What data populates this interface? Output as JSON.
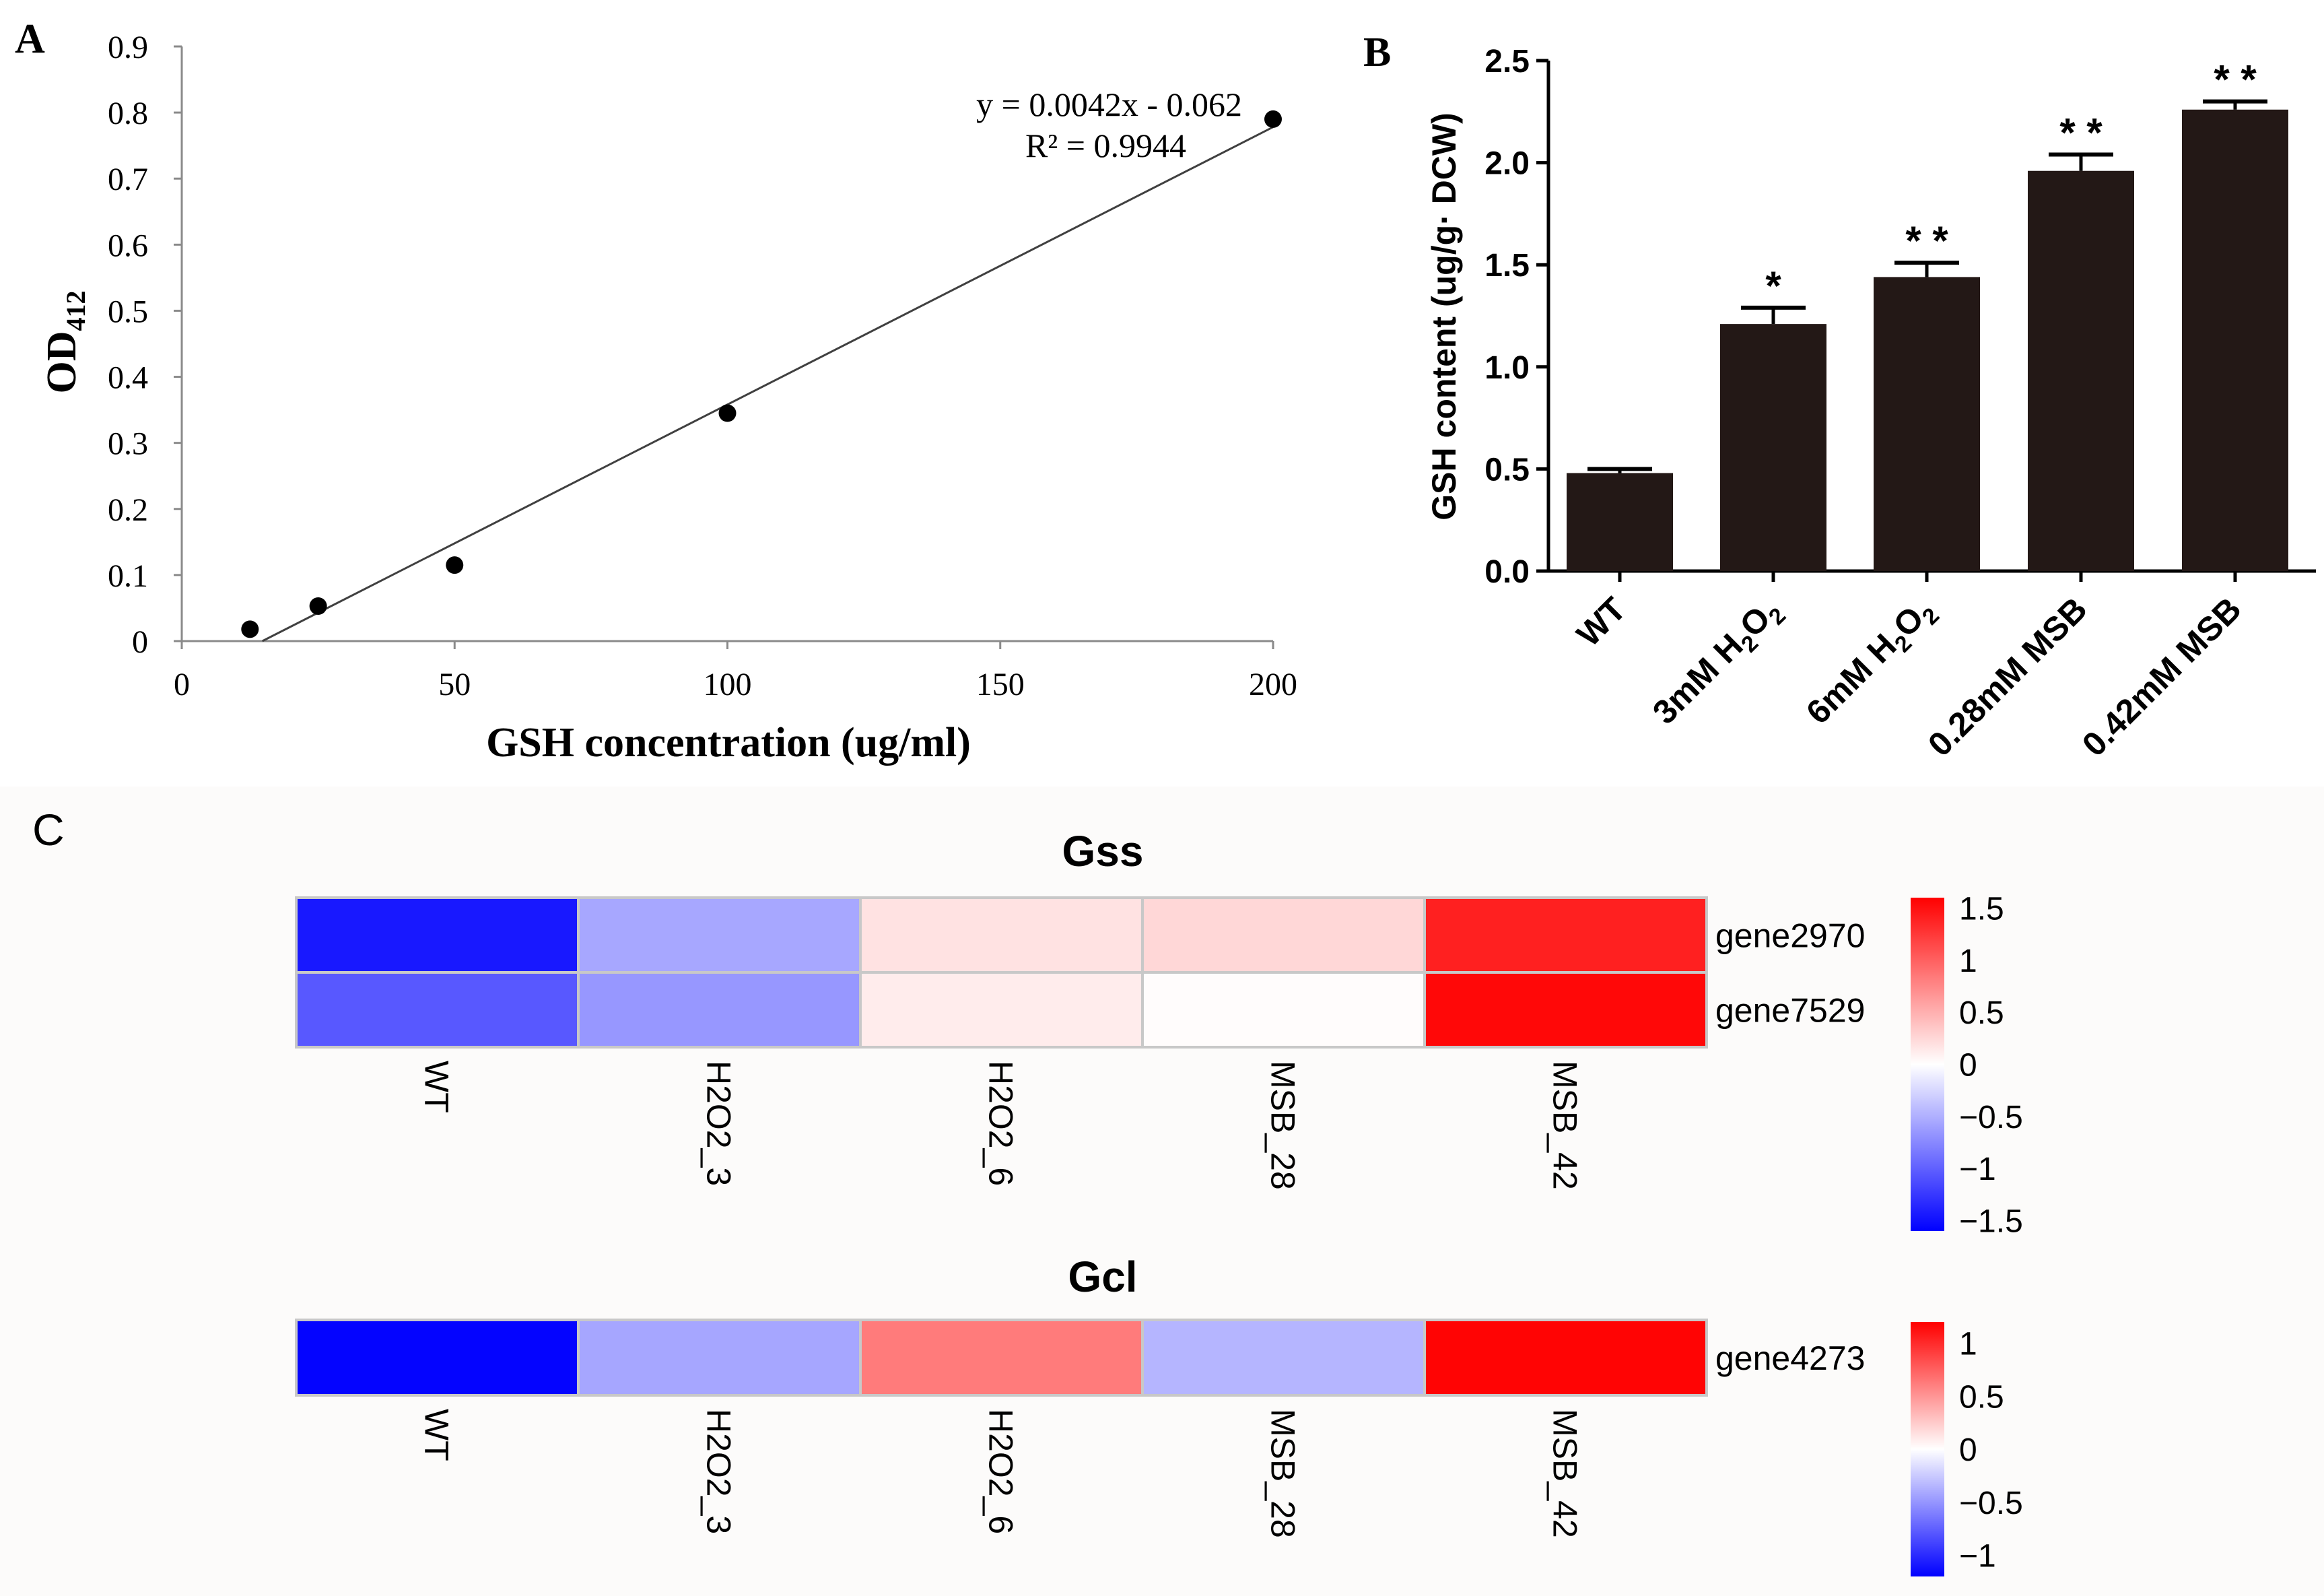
{
  "panels": {
    "a_label": "A",
    "b_label": "B",
    "c_label": "C"
  },
  "chart_data": [
    {
      "panel": "A",
      "type": "scatter",
      "xlabel": "GSH concentration (ug/ml)",
      "ylabel_main": "OD",
      "ylabel_sub": "412",
      "xlim": [
        0,
        200
      ],
      "ylim": [
        0,
        0.9
      ],
      "x_ticks": [
        0,
        50,
        100,
        150,
        200
      ],
      "y_ticks": [
        0,
        0.1,
        0.2,
        0.3,
        0.4,
        0.5,
        0.6,
        0.7,
        0.8,
        0.9
      ],
      "x_tick_labels": [
        "0",
        "50",
        "100",
        "150",
        "200"
      ],
      "y_tick_labels": [
        "0",
        "0.1",
        "0.2",
        "0.3",
        "0.4",
        "0.5",
        "0.6",
        "0.7",
        "0.8",
        "0.9"
      ],
      "points": [
        {
          "x": 12.5,
          "y": 0.018
        },
        {
          "x": 25,
          "y": 0.053
        },
        {
          "x": 50,
          "y": 0.115
        },
        {
          "x": 100,
          "y": 0.345
        },
        {
          "x": 200,
          "y": 0.79
        }
      ],
      "trendline": {
        "slope": 0.0042,
        "intercept": -0.062,
        "x_start": 14.76,
        "x_end": 200
      },
      "equation": "y = 0.0042x - 0.062",
      "r_squared": "R² = 0.9944"
    },
    {
      "panel": "B",
      "type": "bar",
      "ylabel": "GSH content (ug/g· DCW)",
      "ylim": [
        0,
        2.5
      ],
      "y_ticks": [
        0,
        0.5,
        1.0,
        1.5,
        2.0,
        2.5
      ],
      "y_tick_labels": [
        "0.0",
        "0.5",
        "1.0",
        "1.5",
        "2.0",
        "2.5"
      ],
      "categories": [
        "WT",
        "3mM H2O2",
        "6mM H2O2",
        "0.28mM MSB",
        "0.42mM MSB"
      ],
      "category_labels": [
        {
          "pre": "WT"
        },
        {
          "pre": "3mM H",
          "sub1": "2",
          "mid": "O",
          "sub2": "2"
        },
        {
          "pre": "6mM H",
          "sub1": "2",
          "mid": "O",
          "sub2": "2"
        },
        {
          "pre": "0.28mM MSB"
        },
        {
          "pre": "0.42mM MSB"
        }
      ],
      "values": [
        0.48,
        1.21,
        1.44,
        1.96,
        2.26
      ],
      "errors": [
        0.02,
        0.08,
        0.07,
        0.08,
        0.04
      ],
      "significance": [
        "",
        "*",
        "* *",
        "* *",
        "* *"
      ],
      "bar_color": "#231816"
    },
    {
      "panel": "C",
      "type": "heatmap",
      "title": "Gss",
      "rows": [
        "gene2970",
        "gene7529"
      ],
      "columns": [
        "WT",
        "H2O2_3",
        "H2O2_6",
        "MSB_28",
        "MSB_42"
      ],
      "values": [
        [
          -1.45,
          -0.55,
          0.18,
          0.25,
          1.4
        ],
        [
          -1.05,
          -0.65,
          0.12,
          0.02,
          1.55
        ]
      ],
      "scale_range": [
        -1.6,
        1.6
      ],
      "colorbar_ticks": [
        1.5,
        1,
        0.5,
        0,
        -0.5,
        -1,
        -1.5
      ],
      "colorbar_labels": [
        "1.5",
        "1",
        "0.5",
        "0",
        "−0.5",
        "−1",
        "−1.5"
      ]
    },
    {
      "panel": "C",
      "type": "heatmap",
      "title": "Gcl",
      "rows": [
        "gene4273"
      ],
      "columns": [
        "WT",
        "H2O2_3",
        "H2O2_6",
        "MSB_28",
        "MSB_42"
      ],
      "values": [
        [
          -1.18,
          -0.42,
          0.62,
          -0.35,
          1.18
        ]
      ],
      "scale_range": [
        -1.2,
        1.2
      ],
      "colorbar_ticks": [
        1,
        0.5,
        0,
        -0.5,
        -1
      ],
      "colorbar_labels": [
        "1",
        "0.5",
        "0",
        "−0.5",
        "−1"
      ]
    }
  ],
  "colors": {
    "low": "#0000ff",
    "mid": "#ffffff",
    "high": "#ff0000",
    "bar": "#231816",
    "marker": "#000000"
  }
}
